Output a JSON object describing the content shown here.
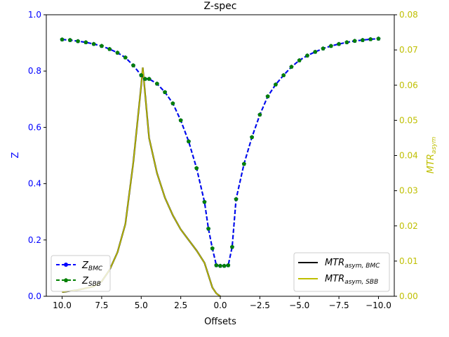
{
  "chart_data": {
    "type": "line",
    "title": "Z-spec",
    "xlabel": "Offsets",
    "ylabel_left": "Z",
    "ylabel_right": "MTR_asym",
    "xlim": [
      11.0,
      -11.0
    ],
    "ylim_left": [
      0.0,
      1.0
    ],
    "ylim_right": [
      0.0,
      0.08
    ],
    "grid": false,
    "colors": {
      "left_axis": "#0000ff",
      "right_axis": "#bfbf00",
      "z_bmc": "#0000ff",
      "z_sbb": "#008000",
      "mtr_bmc": "#000000",
      "mtr_sbb": "#bfbf00"
    },
    "x_ticks": [
      {
        "value": 10.0,
        "label": "10.0"
      },
      {
        "value": 7.5,
        "label": "7.5"
      },
      {
        "value": 5.0,
        "label": "5.0"
      },
      {
        "value": 2.5,
        "label": "2.5"
      },
      {
        "value": 0.0,
        "label": "0.0"
      },
      {
        "value": -2.5,
        "label": "−2.5"
      },
      {
        "value": -5.0,
        "label": "−5.0"
      },
      {
        "value": -7.5,
        "label": "−7.5"
      },
      {
        "value": -10.0,
        "label": "−10.0"
      }
    ],
    "y_left_ticks": [
      {
        "value": 0.0,
        "label": "0.0"
      },
      {
        "value": 0.2,
        "label": "0.2"
      },
      {
        "value": 0.4,
        "label": "0.4"
      },
      {
        "value": 0.6,
        "label": "0.6"
      },
      {
        "value": 0.8,
        "label": "0.8"
      },
      {
        "value": 1.0,
        "label": "1.0"
      }
    ],
    "y_right_ticks": [
      {
        "value": 0.0,
        "label": "0.00"
      },
      {
        "value": 0.01,
        "label": "0.01"
      },
      {
        "value": 0.02,
        "label": "0.02"
      },
      {
        "value": 0.03,
        "label": "0.03"
      },
      {
        "value": 0.04,
        "label": "0.04"
      },
      {
        "value": 0.05,
        "label": "0.05"
      },
      {
        "value": 0.06,
        "label": "0.06"
      },
      {
        "value": 0.07,
        "label": "0.07"
      },
      {
        "value": 0.08,
        "label": "0.08"
      }
    ],
    "legend_left": {
      "placement": "lower-left",
      "entries": [
        {
          "main": "Z",
          "sub": "BMC",
          "series": "z_bmc"
        },
        {
          "main": "Z",
          "sub": "SBB",
          "series": "z_sbb"
        }
      ]
    },
    "legend_right": {
      "placement": "lower-right",
      "entries": [
        {
          "main": "MTR",
          "sub": "asym, BMC",
          "series": "mtr_bmc"
        },
        {
          "main": "MTR",
          "sub": "asym, SBB",
          "series": "mtr_sbb"
        }
      ]
    },
    "z_series": {
      "x": [
        10.0,
        9.5,
        9.0,
        8.5,
        8.0,
        7.5,
        7.0,
        6.5,
        6.0,
        5.5,
        5.0,
        4.75,
        4.5,
        4.0,
        3.5,
        3.0,
        2.5,
        2.0,
        1.5,
        1.0,
        0.75,
        0.5,
        0.25,
        0.0,
        -0.25,
        -0.5,
        -0.75,
        -1.0,
        -1.5,
        -2.0,
        -2.5,
        -3.0,
        -3.5,
        -4.0,
        -4.5,
        -5.0,
        -5.5,
        -6.0,
        -6.5,
        -7.0,
        -7.5,
        -8.0,
        -8.5,
        -9.0,
        -9.5,
        -10.0
      ],
      "values": [
        0.912,
        0.91,
        0.906,
        0.902,
        0.896,
        0.889,
        0.878,
        0.865,
        0.848,
        0.82,
        0.785,
        0.772,
        0.772,
        0.755,
        0.725,
        0.685,
        0.625,
        0.55,
        0.455,
        0.335,
        0.24,
        0.17,
        0.11,
        0.108,
        0.108,
        0.11,
        0.175,
        0.345,
        0.47,
        0.565,
        0.645,
        0.71,
        0.752,
        0.785,
        0.815,
        0.838,
        0.855,
        0.868,
        0.88,
        0.889,
        0.896,
        0.902,
        0.907,
        0.91,
        0.913,
        0.915
      ]
    },
    "mtr_series": {
      "x": [
        10.0,
        9.0,
        8.0,
        7.5,
        7.0,
        6.5,
        6.0,
        5.5,
        5.0,
        4.9,
        4.5,
        4.0,
        3.5,
        3.0,
        2.5,
        2.0,
        1.5,
        1.0,
        0.5,
        0.25,
        0.0
      ],
      "values": [
        0.0012,
        0.0018,
        0.0028,
        0.0042,
        0.0075,
        0.0125,
        0.0205,
        0.038,
        0.06,
        0.065,
        0.045,
        0.035,
        0.028,
        0.023,
        0.019,
        0.016,
        0.013,
        0.0095,
        0.0025,
        0.0008,
        0.0
      ]
    }
  }
}
